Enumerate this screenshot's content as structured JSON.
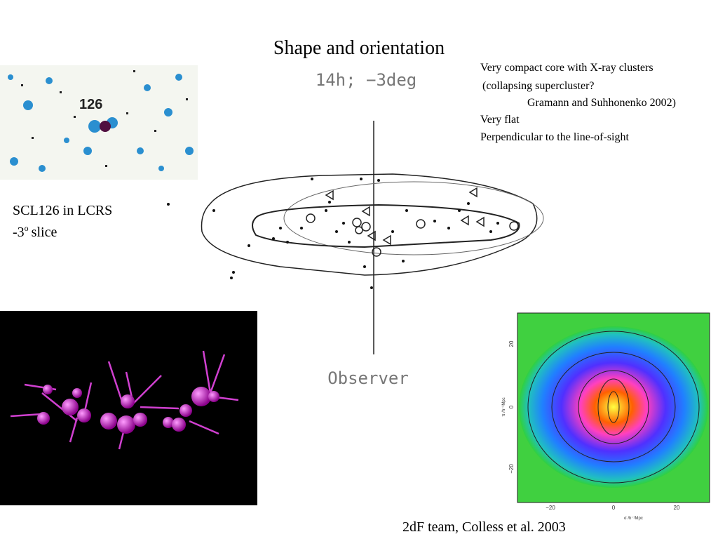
{
  "title": "Shape and orientation",
  "notes": [
    "Very compact core with X-ray clusters",
    "(collapsing supercluster?",
    "Gramann and Suhhonenko 2002)",
    "Very flat",
    "Perpendicular to the line-of-sight"
  ],
  "lcrs_image": {
    "label": "126"
  },
  "caption": {
    "line1": "SCL126 in LCRS",
    "line2": "-3",
    "superscript": "o",
    "line2_end": "slice"
  },
  "diagram": {
    "heading": "14h; −3deg",
    "observer": "Observer"
  },
  "plot": {
    "xticks": [
      "−20",
      "0",
      "20"
    ],
    "yticks": [
      "20",
      "0",
      "−20"
    ],
    "xlabel": "σ /h⁻¹Mpc",
    "ylabel": "π /h⁻¹Mpc"
  },
  "credit": "2dF team, Colless et al. 2003"
}
